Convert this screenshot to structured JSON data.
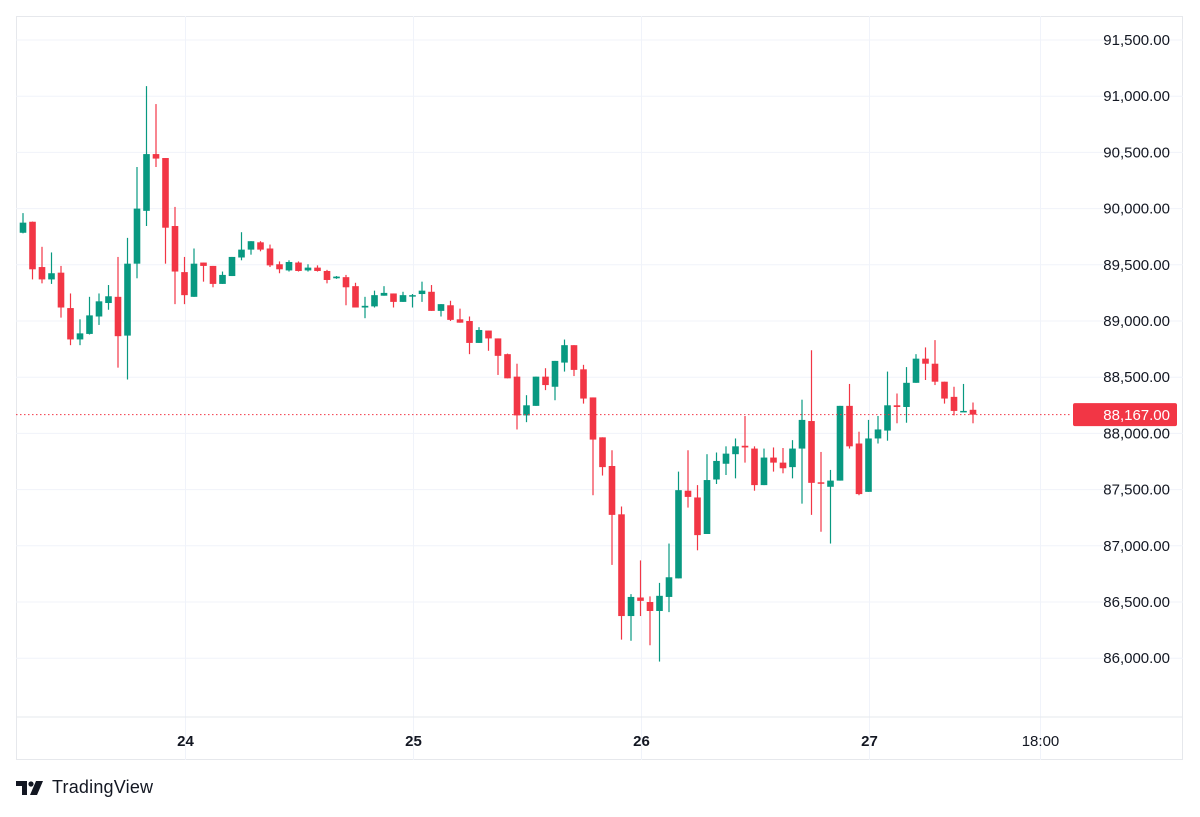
{
  "chart_data": {
    "type": "candlestick",
    "title": "",
    "xlabel": "",
    "ylabel": "",
    "ylim": [
      85500,
      91850
    ],
    "y_ticks": [
      "91,500.00",
      "91,000.00",
      "90,500.00",
      "90,000.00",
      "89,500.00",
      "89,000.00",
      "88,500.00",
      "88,000.00",
      "87,500.00",
      "87,000.00",
      "86,500.00",
      "86,000.00"
    ],
    "y_tick_values": [
      91500,
      91000,
      90500,
      90000,
      89500,
      89000,
      88500,
      88000,
      87500,
      87000,
      86500,
      86000
    ],
    "x_ticks": [
      {
        "label": "24",
        "candle_index": 17.0,
        "bold": true
      },
      {
        "label": "25",
        "candle_index": 41.0,
        "bold": true
      },
      {
        "label": "26",
        "candle_index": 65.0,
        "bold": true
      },
      {
        "label": "27",
        "candle_index": 89.0,
        "bold": true
      },
      {
        "label": "18:00",
        "candle_index": 107.0,
        "bold": false
      }
    ],
    "interval": "1h",
    "grid": true,
    "last_price": 88167,
    "last_price_label": "88,167.00",
    "colors": {
      "up": "#089981",
      "down": "#f23645",
      "grid": "#f0f3fa",
      "text": "#131722"
    },
    "candles_ohlc": [
      [
        89785,
        89960,
        89780,
        89875
      ],
      [
        89883,
        89885,
        89370,
        89460
      ],
      [
        89480,
        89660,
        89335,
        89370
      ],
      [
        89370,
        89610,
        89330,
        89425
      ],
      [
        89430,
        89490,
        89030,
        89120
      ],
      [
        89115,
        89245,
        88785,
        88836
      ],
      [
        88836,
        89015,
        88785,
        88890
      ],
      [
        88885,
        89215,
        88880,
        89050
      ],
      [
        89040,
        89245,
        88965,
        89175
      ],
      [
        89160,
        89320,
        89100,
        89220
      ],
      [
        89215,
        89570,
        88585,
        88865
      ],
      [
        88870,
        89740,
        88480,
        89510
      ],
      [
        89510,
        90370,
        89380,
        90000
      ],
      [
        89980,
        91090,
        89845,
        90485
      ],
      [
        90485,
        90930,
        90370,
        90445
      ],
      [
        90450,
        90450,
        89510,
        89830
      ],
      [
        89845,
        90015,
        89150,
        89440
      ],
      [
        89435,
        89570,
        89150,
        89230
      ],
      [
        89215,
        89645,
        89215,
        89510
      ],
      [
        89520,
        89520,
        89350,
        89490
      ],
      [
        89490,
        89490,
        89300,
        89330
      ],
      [
        89330,
        89440,
        89330,
        89410
      ],
      [
        89400,
        89570,
        89400,
        89570
      ],
      [
        89565,
        89790,
        89540,
        89635
      ],
      [
        89635,
        89710,
        89590,
        89710
      ],
      [
        89700,
        89710,
        89620,
        89635
      ],
      [
        89645,
        89680,
        89480,
        89495
      ],
      [
        89505,
        89530,
        89425,
        89460
      ],
      [
        89450,
        89540,
        89440,
        89525
      ],
      [
        89520,
        89530,
        89440,
        89445
      ],
      [
        89450,
        89505,
        89440,
        89475
      ],
      [
        89475,
        89495,
        89440,
        89445
      ],
      [
        89445,
        89455,
        89335,
        89365
      ],
      [
        89380,
        89400,
        89375,
        89395
      ],
      [
        89390,
        89410,
        89140,
        89300
      ],
      [
        89310,
        89340,
        89120,
        89120
      ],
      [
        89120,
        89215,
        89025,
        89135
      ],
      [
        89130,
        89270,
        89120,
        89230
      ],
      [
        89225,
        89310,
        89225,
        89250
      ],
      [
        89245,
        89245,
        89120,
        89170
      ],
      [
        89170,
        89260,
        89170,
        89230
      ],
      [
        89225,
        89240,
        89120,
        89230
      ],
      [
        89240,
        89350,
        89170,
        89270
      ],
      [
        89260,
        89320,
        89090,
        89090
      ],
      [
        89090,
        89150,
        89040,
        89150
      ],
      [
        89140,
        89180,
        89000,
        89010
      ],
      [
        89015,
        89110,
        88985,
        88985
      ],
      [
        89000,
        89040,
        88705,
        88805
      ],
      [
        88805,
        88945,
        88805,
        88920
      ],
      [
        88915,
        88915,
        88735,
        88845
      ],
      [
        88845,
        88845,
        88520,
        88690
      ],
      [
        88705,
        88710,
        88490,
        88490
      ],
      [
        88505,
        88620,
        88035,
        88160
      ],
      [
        88160,
        88340,
        88100,
        88250
      ],
      [
        88245,
        88505,
        88245,
        88505
      ],
      [
        88505,
        88580,
        88385,
        88430
      ],
      [
        88415,
        88645,
        88295,
        88645
      ],
      [
        88630,
        88835,
        88550,
        88785
      ],
      [
        88785,
        88785,
        88510,
        88565
      ],
      [
        88570,
        88610,
        88265,
        88310
      ],
      [
        88320,
        88320,
        87450,
        87945
      ],
      [
        87965,
        87965,
        87625,
        87700
      ],
      [
        87710,
        87850,
        86830,
        87275
      ],
      [
        87280,
        87350,
        86165,
        86375
      ],
      [
        86375,
        86570,
        86155,
        86545
      ],
      [
        86540,
        86870,
        86375,
        86510
      ],
      [
        86500,
        86550,
        86115,
        86420
      ],
      [
        86420,
        86670,
        85970,
        86555
      ],
      [
        86545,
        87020,
        86410,
        86720
      ],
      [
        86710,
        87660,
        86710,
        87495
      ],
      [
        87490,
        87850,
        87340,
        87435
      ],
      [
        87430,
        87540,
        86960,
        87095
      ],
      [
        87105,
        87815,
        87105,
        87585
      ],
      [
        87590,
        87830,
        87550,
        87755
      ],
      [
        87730,
        87885,
        87630,
        87820
      ],
      [
        87815,
        87955,
        87600,
        87885
      ],
      [
        87890,
        88155,
        87740,
        87875
      ],
      [
        87865,
        87885,
        87490,
        87540
      ],
      [
        87540,
        87865,
        87540,
        87785
      ],
      [
        87785,
        87875,
        87660,
        87740
      ],
      [
        87740,
        87870,
        87645,
        87690
      ],
      [
        87700,
        87940,
        87600,
        87865
      ],
      [
        87865,
        88300,
        87375,
        88120
      ],
      [
        88110,
        88740,
        87275,
        87560
      ],
      [
        87565,
        87835,
        87125,
        87555
      ],
      [
        87525,
        87675,
        87020,
        87580
      ],
      [
        87580,
        88245,
        87580,
        88245
      ],
      [
        88245,
        88440,
        87865,
        87885
      ],
      [
        87910,
        88015,
        87450,
        87460
      ],
      [
        87480,
        88120,
        87480,
        87955
      ],
      [
        87955,
        88155,
        87910,
        88035
      ],
      [
        88025,
        88550,
        87935,
        88250
      ],
      [
        88250,
        88355,
        88090,
        88235
      ],
      [
        88235,
        88590,
        88095,
        88450
      ],
      [
        88450,
        88705,
        88450,
        88665
      ],
      [
        88665,
        88765,
        88475,
        88620
      ],
      [
        88620,
        88830,
        88430,
        88460
      ],
      [
        88460,
        88460,
        88265,
        88310
      ],
      [
        88325,
        88415,
        88160,
        88200
      ],
      [
        88195,
        88440,
        88190,
        88200
      ],
      [
        88210,
        88275,
        88090,
        88167
      ]
    ]
  },
  "branding": {
    "logo_text": "TradingView"
  }
}
